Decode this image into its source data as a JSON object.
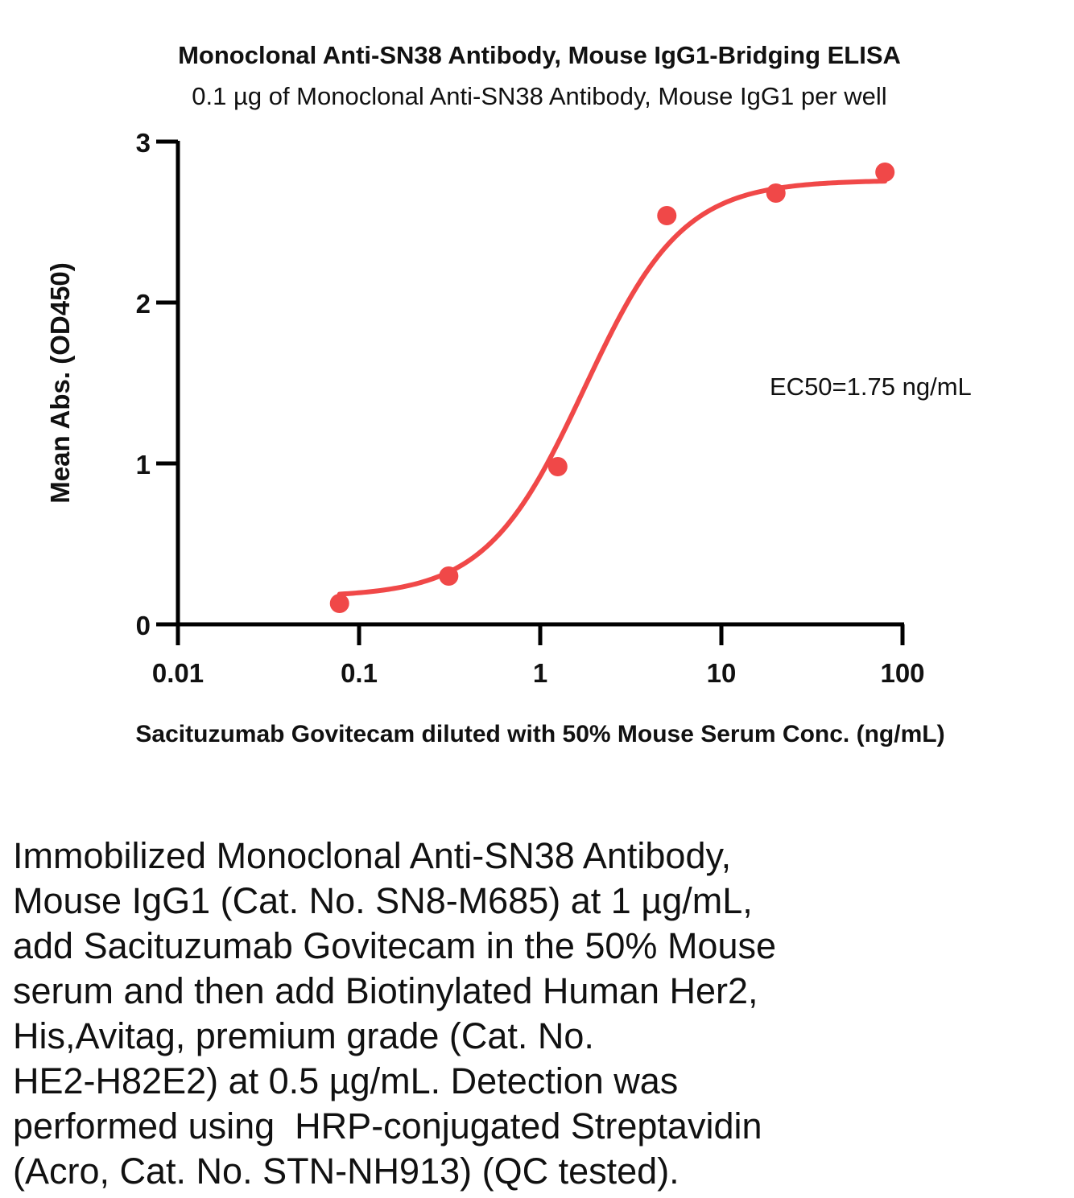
{
  "chart_data": {
    "type": "scatter",
    "title": "Monoclonal Anti-SN38 Antibody, Mouse IgG1-Bridging ELISA",
    "subtitle": "0.1 µg of Monoclonal Anti-SN38 Antibody, Mouse IgG1 per well",
    "xlabel": "Sacituzumab Govitecam diluted with 50% Mouse Serum Conc. (ng/mL)",
    "ylabel": "Mean Abs. (OD450)",
    "x_scale": "log",
    "xlim": [
      0.01,
      100
    ],
    "ylim": [
      0,
      3
    ],
    "x_ticks": [
      0.01,
      0.1,
      1,
      10,
      100
    ],
    "x_tick_labels": [
      "0.01",
      "0.1",
      "1",
      "10",
      "100"
    ],
    "y_ticks": [
      0,
      1,
      2,
      3
    ],
    "y_tick_labels": [
      "0",
      "1",
      "2",
      "3"
    ],
    "grid": false,
    "annotation": "EC50=1.75 ng/mL",
    "series": [
      {
        "x": [
          0.078,
          0.3125,
          1.25,
          5,
          20,
          80
        ],
        "y": [
          0.13,
          0.3,
          0.98,
          2.54,
          2.68,
          2.81
        ],
        "color": "#f04848",
        "fit": {
          "model": "4PL",
          "bottom": 0.17,
          "top": 2.76,
          "ec50": 1.75,
          "hill": 1.6
        }
      }
    ]
  },
  "caption": {
    "lines": [
      "Immobilized Monoclonal Anti-SN38 Antibody,",
      "Mouse IgG1 (Cat. No. SN8-M685) at 1 µg/mL,",
      "add Sacituzumab Govitecam in the 50% Mouse",
      "serum and then add Biotinylated Human Her2,",
      "His,Avitag, premium grade (Cat. No.",
      "HE2-H82E2) at 0.5 µg/mL. Detection was",
      "performed using  HRP-conjugated Streptavidin",
      "(Acro, Cat. No. STN-NH913) (QC tested)."
    ]
  }
}
